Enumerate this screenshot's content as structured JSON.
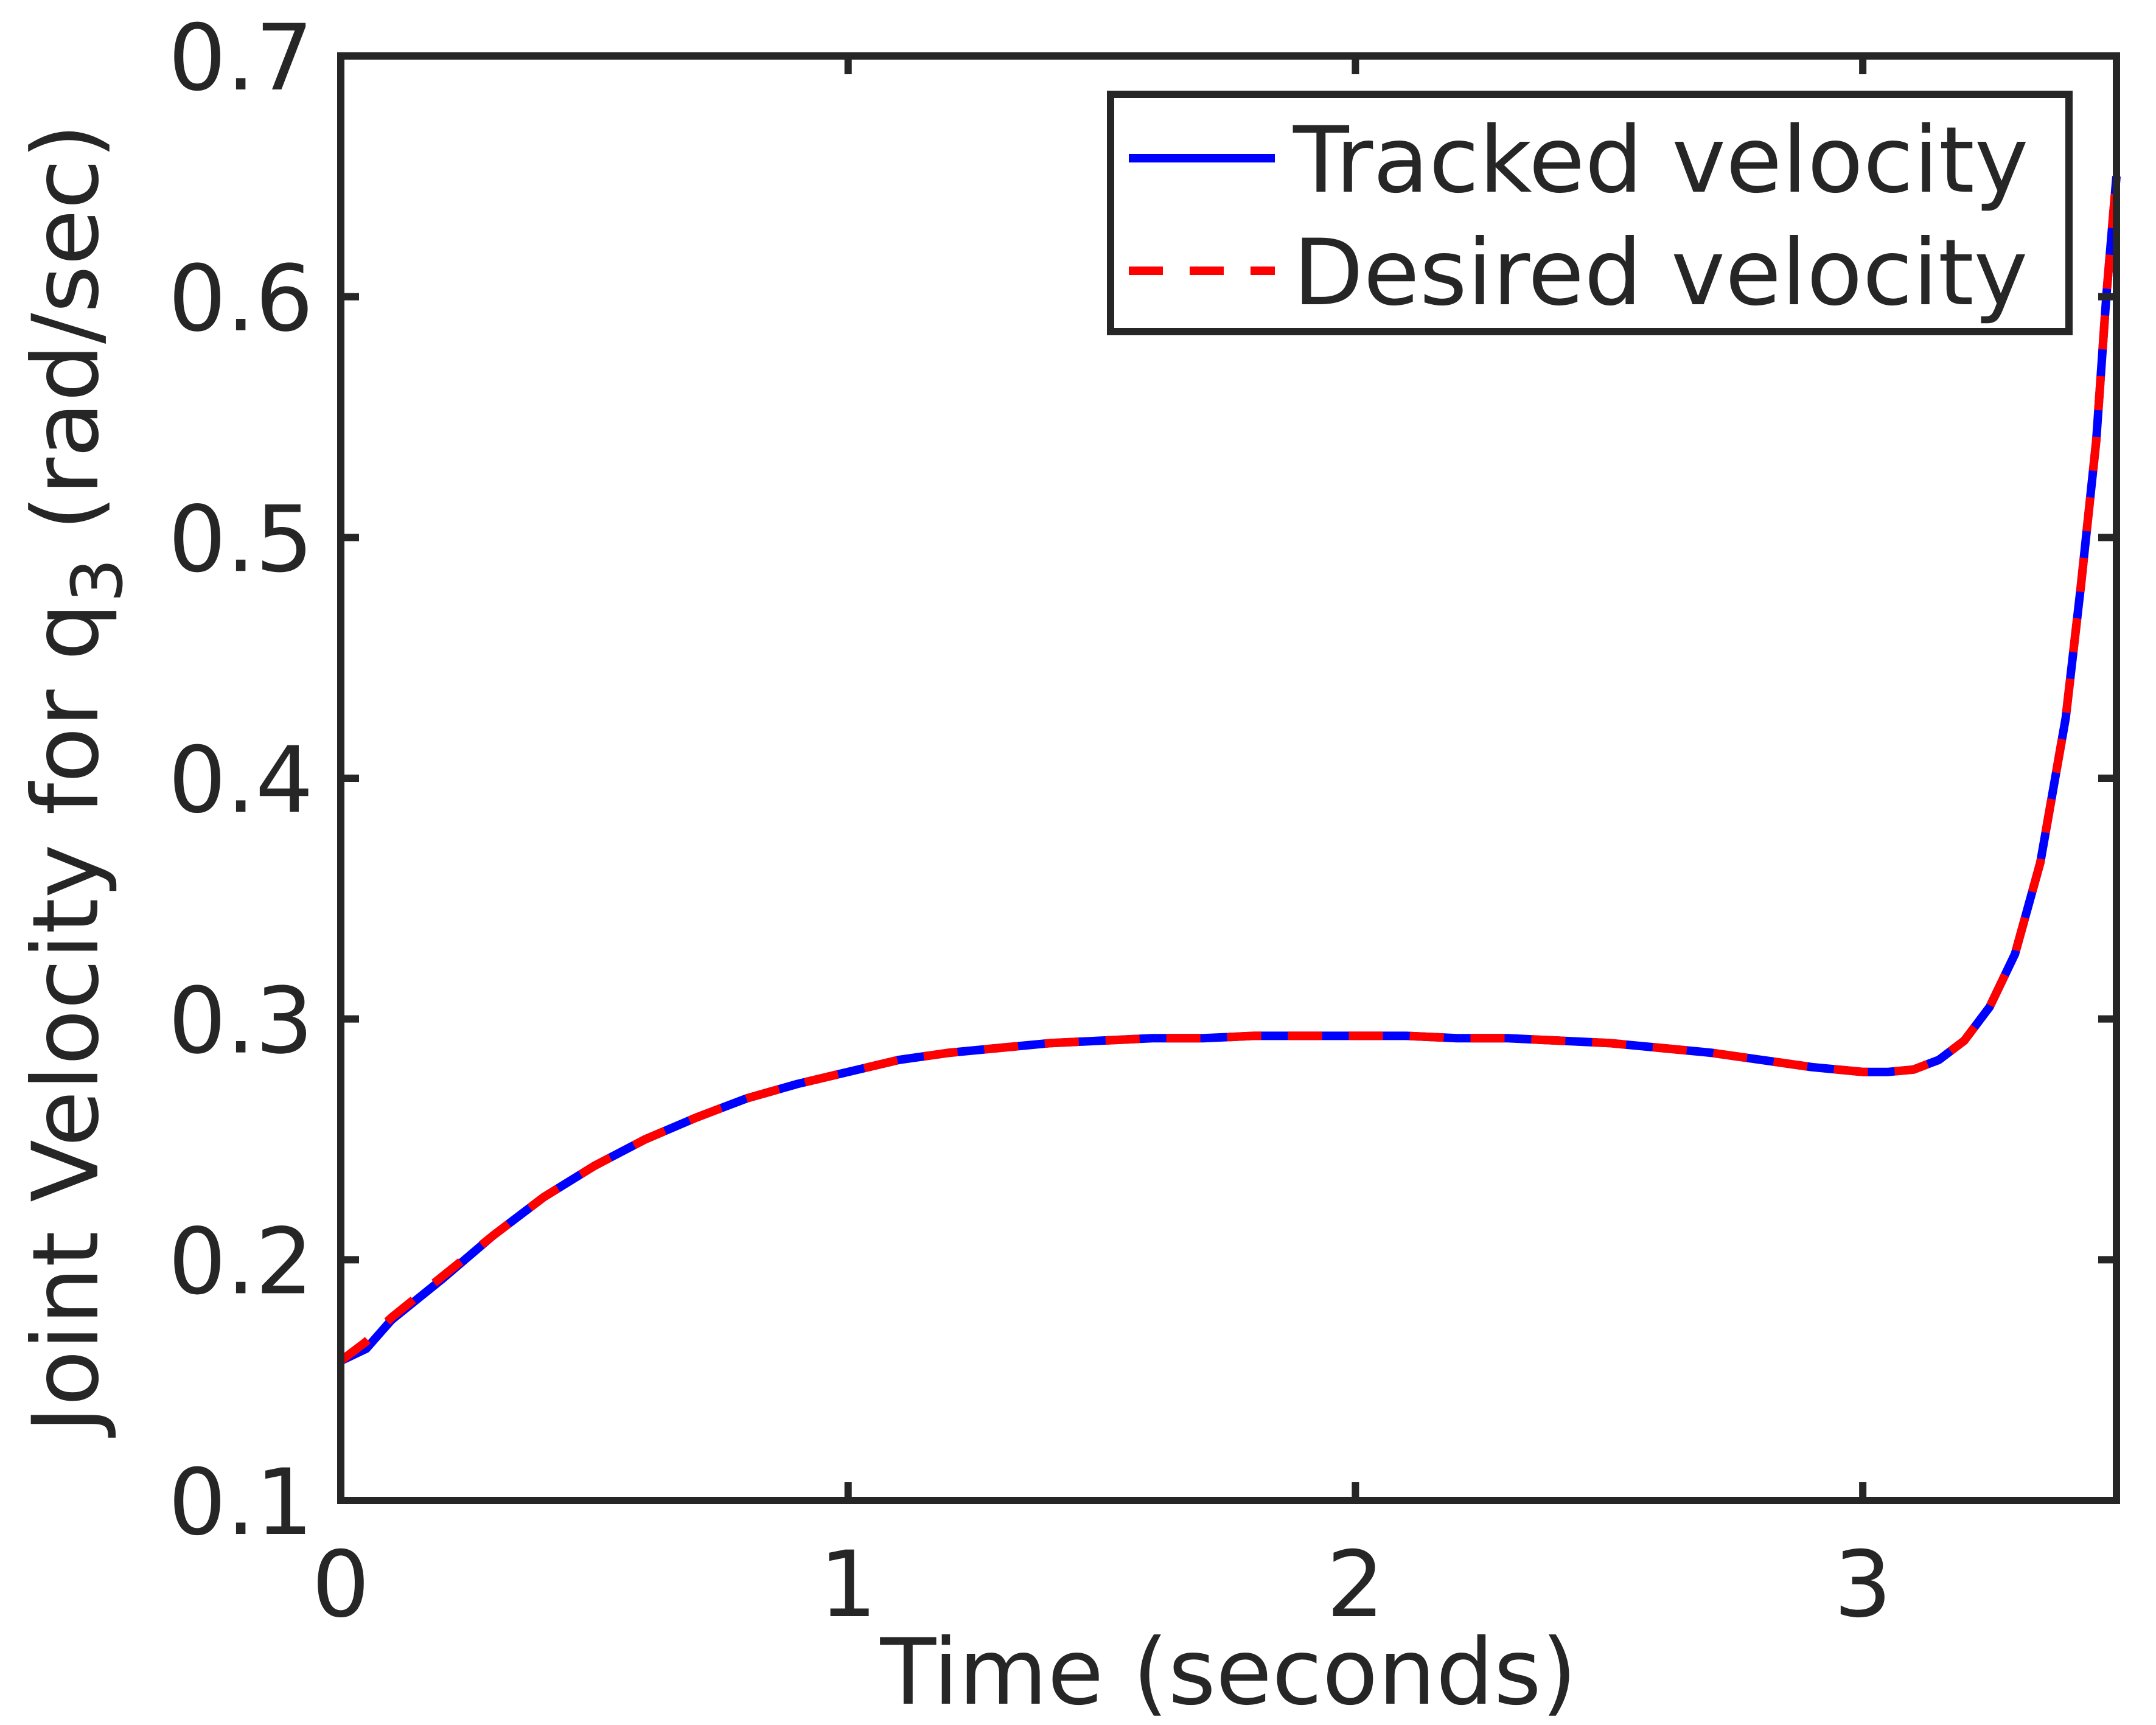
{
  "chart_data": {
    "type": "line",
    "title": "",
    "xlabel": "Time (seconds)",
    "ylabel": {
      "main": "Joint Velocity for q",
      "subscript": "3",
      "unit": "(rad/sec)"
    },
    "xlim": [
      0,
      3.5
    ],
    "ylim": [
      0.1,
      0.7
    ],
    "xticks": [
      0,
      1,
      2,
      3
    ],
    "xtick_labels": [
      "0",
      "1",
      "2",
      "3"
    ],
    "yticks": [
      0.1,
      0.2,
      0.3,
      0.4,
      0.5,
      0.6,
      0.7
    ],
    "ytick_labels": [
      "0.1",
      "0.2",
      "0.3",
      "0.4",
      "0.5",
      "0.6",
      "0.7"
    ],
    "grid": false,
    "legend_position": "top-right",
    "x": [
      0,
      0.05,
      0.1,
      0.2,
      0.3,
      0.4,
      0.5,
      0.6,
      0.7,
      0.8,
      0.9,
      1.0,
      1.1,
      1.2,
      1.3,
      1.4,
      1.5,
      1.6,
      1.7,
      1.8,
      1.9,
      2.0,
      2.1,
      2.2,
      2.3,
      2.4,
      2.5,
      2.6,
      2.7,
      2.8,
      2.9,
      3.0,
      3.05,
      3.1,
      3.15,
      3.2,
      3.25,
      3.3,
      3.35,
      3.4,
      3.43,
      3.46,
      3.48,
      3.5
    ],
    "series": [
      {
        "name": "Tracked velocity",
        "color": "#0000ff",
        "style": "solid",
        "values": [
          0.158,
          0.163,
          0.175,
          0.192,
          0.21,
          0.226,
          0.239,
          0.25,
          0.259,
          0.267,
          0.273,
          0.278,
          0.283,
          0.286,
          0.288,
          0.29,
          0.291,
          0.292,
          0.292,
          0.293,
          0.293,
          0.293,
          0.293,
          0.292,
          0.292,
          0.291,
          0.29,
          0.288,
          0.286,
          0.283,
          0.28,
          0.278,
          0.278,
          0.279,
          0.283,
          0.291,
          0.305,
          0.327,
          0.365,
          0.425,
          0.48,
          0.54,
          0.6,
          0.65
        ]
      },
      {
        "name": "Desired velocity",
        "color": "#ff0000",
        "style": "dashed",
        "values": [
          0.158,
          0.166,
          0.176,
          0.193,
          0.21,
          0.226,
          0.239,
          0.25,
          0.259,
          0.267,
          0.273,
          0.278,
          0.283,
          0.286,
          0.288,
          0.29,
          0.291,
          0.292,
          0.292,
          0.293,
          0.293,
          0.293,
          0.293,
          0.292,
          0.292,
          0.291,
          0.29,
          0.288,
          0.286,
          0.283,
          0.28,
          0.278,
          0.278,
          0.279,
          0.283,
          0.291,
          0.305,
          0.327,
          0.365,
          0.425,
          0.48,
          0.54,
          0.6,
          0.65
        ]
      }
    ]
  }
}
